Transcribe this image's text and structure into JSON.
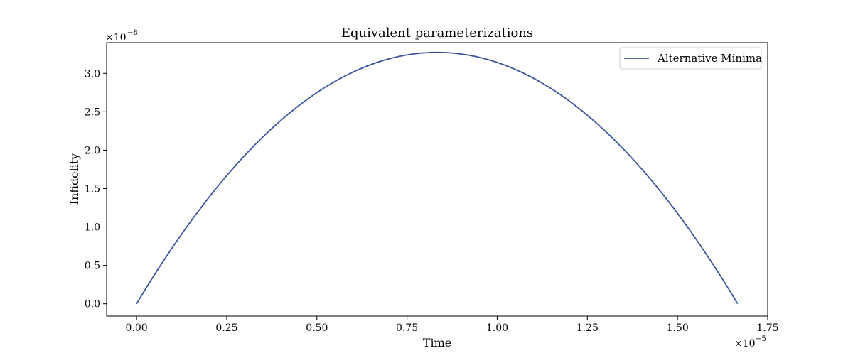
{
  "chart_data": {
    "type": "line",
    "title": "Equivalent parameterizations",
    "xlabel": "Time",
    "ylabel": "Infidelity",
    "x_offset_label": "×10",
    "x_offset_exponent": "−5",
    "y_offset_label": "×10",
    "y_offset_exponent": "−8",
    "xlim": [
      -0.083,
      1.75
    ],
    "ylim": [
      -0.16,
      3.4
    ],
    "x_ticks": [
      0.0,
      0.25,
      0.5,
      0.75,
      1.0,
      1.25,
      1.5,
      1.75
    ],
    "x_tick_labels": [
      "0.00",
      "0.25",
      "0.50",
      "0.75",
      "1.00",
      "1.25",
      "1.50",
      "1.75"
    ],
    "y_ticks": [
      0.0,
      0.5,
      1.0,
      1.5,
      2.0,
      2.5,
      3.0
    ],
    "y_tick_labels": [
      "0.0",
      "0.5",
      "1.0",
      "1.5",
      "2.0",
      "2.5",
      "3.0"
    ],
    "grid": false,
    "legend_position": "top-right",
    "series": [
      {
        "name": "Alternative Minima",
        "color": "#3a54a3",
        "x": [
          0.0,
          0.0833,
          0.1667,
          0.25,
          0.3333,
          0.4167,
          0.5,
          0.5833,
          0.6667,
          0.75,
          0.8333,
          0.9167,
          1.0,
          1.0833,
          1.1667,
          1.25,
          1.3333,
          1.4167,
          1.5,
          1.5833,
          1.6667
        ],
        "values": [
          0.0,
          0.621,
          1.177,
          1.668,
          2.094,
          2.454,
          2.749,
          2.978,
          3.142,
          3.24,
          3.273,
          3.24,
          3.142,
          2.978,
          2.749,
          2.454,
          2.094,
          1.668,
          1.177,
          0.621,
          0.0
        ]
      }
    ]
  }
}
